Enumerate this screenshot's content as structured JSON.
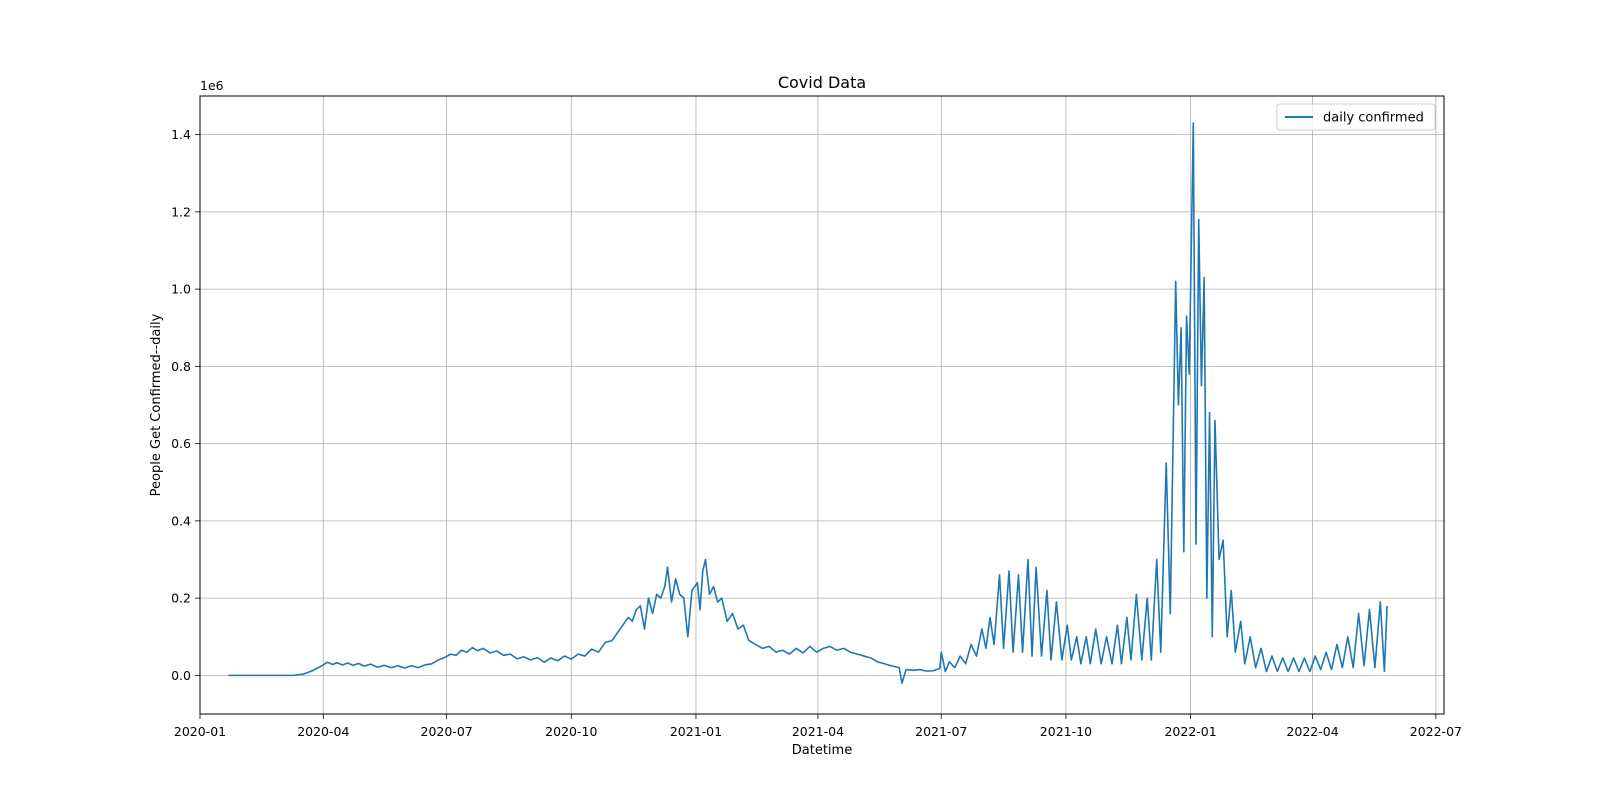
{
  "chart_data": {
    "type": "line",
    "title": "Covid Data",
    "xlabel": "Datetime",
    "ylabel": "People Get Confirmed--daily",
    "y_offset_text": "1e6",
    "y_multiplier": 1000000,
    "xlim": [
      "2020-01-01",
      "2022-07-07"
    ],
    "ylim": [
      -0.1,
      1.5
    ],
    "grid": true,
    "legend_position": "top-right",
    "x_ticks": [
      {
        "date": "2020-01-01",
        "label": "2020-01"
      },
      {
        "date": "2020-04-01",
        "label": "2020-04"
      },
      {
        "date": "2020-07-01",
        "label": "2020-07"
      },
      {
        "date": "2020-10-01",
        "label": "2020-10"
      },
      {
        "date": "2021-01-01",
        "label": "2021-01"
      },
      {
        "date": "2021-04-01",
        "label": "2021-04"
      },
      {
        "date": "2021-07-01",
        "label": "2021-07"
      },
      {
        "date": "2021-10-01",
        "label": "2021-10"
      },
      {
        "date": "2022-01-01",
        "label": "2022-01"
      },
      {
        "date": "2022-04-01",
        "label": "2022-04"
      },
      {
        "date": "2022-07-01",
        "label": "2022-07"
      }
    ],
    "y_ticks": [
      {
        "value": 0.0,
        "label": "0.0"
      },
      {
        "value": 0.2,
        "label": "0.2"
      },
      {
        "value": 0.4,
        "label": "0.4"
      },
      {
        "value": 0.6,
        "label": "0.6"
      },
      {
        "value": 0.8,
        "label": "0.8"
      },
      {
        "value": 1.0,
        "label": "1.0"
      },
      {
        "value": 1.2,
        "label": "1.2"
      },
      {
        "value": 1.4,
        "label": "1.4"
      }
    ],
    "series": [
      {
        "name": "daily confirmed",
        "color": "#1f77b4",
        "points": [
          [
            "2020-01-22",
            0
          ],
          [
            "2020-02-15",
            0
          ],
          [
            "2020-03-10",
            0
          ],
          [
            "2020-03-17",
            0.003
          ],
          [
            "2020-03-24",
            0.012
          ],
          [
            "2020-03-31",
            0.025
          ],
          [
            "2020-04-04",
            0.034
          ],
          [
            "2020-04-08",
            0.028
          ],
          [
            "2020-04-11",
            0.033
          ],
          [
            "2020-04-15",
            0.027
          ],
          [
            "2020-04-19",
            0.032
          ],
          [
            "2020-04-23",
            0.026
          ],
          [
            "2020-04-27",
            0.031
          ],
          [
            "2020-05-01",
            0.024
          ],
          [
            "2020-05-06",
            0.029
          ],
          [
            "2020-05-11",
            0.021
          ],
          [
            "2020-05-16",
            0.026
          ],
          [
            "2020-05-21",
            0.02
          ],
          [
            "2020-05-26",
            0.025
          ],
          [
            "2020-05-31",
            0.019
          ],
          [
            "2020-06-05",
            0.025
          ],
          [
            "2020-06-10",
            0.02
          ],
          [
            "2020-06-15",
            0.027
          ],
          [
            "2020-06-20",
            0.03
          ],
          [
            "2020-06-25",
            0.04
          ],
          [
            "2020-06-30",
            0.047
          ],
          [
            "2020-07-04",
            0.055
          ],
          [
            "2020-07-08",
            0.052
          ],
          [
            "2020-07-12",
            0.065
          ],
          [
            "2020-07-16",
            0.06
          ],
          [
            "2020-07-20",
            0.072
          ],
          [
            "2020-07-24",
            0.064
          ],
          [
            "2020-07-28",
            0.07
          ],
          [
            "2020-08-02",
            0.058
          ],
          [
            "2020-08-07",
            0.063
          ],
          [
            "2020-08-12",
            0.052
          ],
          [
            "2020-08-17",
            0.055
          ],
          [
            "2020-08-22",
            0.043
          ],
          [
            "2020-08-27",
            0.048
          ],
          [
            "2020-09-01",
            0.04
          ],
          [
            "2020-09-06",
            0.046
          ],
          [
            "2020-09-11",
            0.034
          ],
          [
            "2020-09-16",
            0.045
          ],
          [
            "2020-09-21",
            0.038
          ],
          [
            "2020-09-26",
            0.05
          ],
          [
            "2020-10-01",
            0.042
          ],
          [
            "2020-10-06",
            0.055
          ],
          [
            "2020-10-11",
            0.05
          ],
          [
            "2020-10-16",
            0.068
          ],
          [
            "2020-10-21",
            0.06
          ],
          [
            "2020-10-26",
            0.085
          ],
          [
            "2020-10-31",
            0.09
          ],
          [
            "2020-11-04",
            0.11
          ],
          [
            "2020-11-08",
            0.13
          ],
          [
            "2020-11-12",
            0.15
          ],
          [
            "2020-11-15",
            0.14
          ],
          [
            "2020-11-18",
            0.17
          ],
          [
            "2020-11-21",
            0.18
          ],
          [
            "2020-11-24",
            0.12
          ],
          [
            "2020-11-27",
            0.2
          ],
          [
            "2020-11-30",
            0.16
          ],
          [
            "2020-12-03",
            0.21
          ],
          [
            "2020-12-06",
            0.2
          ],
          [
            "2020-12-09",
            0.23
          ],
          [
            "2020-12-11",
            0.28
          ],
          [
            "2020-12-14",
            0.19
          ],
          [
            "2020-12-17",
            0.25
          ],
          [
            "2020-12-20",
            0.21
          ],
          [
            "2020-12-23",
            0.2
          ],
          [
            "2020-12-26",
            0.1
          ],
          [
            "2020-12-29",
            0.22
          ],
          [
            "2021-01-02",
            0.24
          ],
          [
            "2021-01-04",
            0.17
          ],
          [
            "2021-01-06",
            0.27
          ],
          [
            "2021-01-08",
            0.3
          ],
          [
            "2021-01-11",
            0.21
          ],
          [
            "2021-01-14",
            0.23
          ],
          [
            "2021-01-17",
            0.19
          ],
          [
            "2021-01-20",
            0.2
          ],
          [
            "2021-01-24",
            0.14
          ],
          [
            "2021-01-28",
            0.16
          ],
          [
            "2021-02-01",
            0.12
          ],
          [
            "2021-02-05",
            0.13
          ],
          [
            "2021-02-09",
            0.09
          ],
          [
            "2021-02-14",
            0.08
          ],
          [
            "2021-02-19",
            0.07
          ],
          [
            "2021-02-24",
            0.075
          ],
          [
            "2021-03-01",
            0.06
          ],
          [
            "2021-03-06",
            0.065
          ],
          [
            "2021-03-11",
            0.055
          ],
          [
            "2021-03-16",
            0.07
          ],
          [
            "2021-03-21",
            0.058
          ],
          [
            "2021-03-26",
            0.075
          ],
          [
            "2021-03-31",
            0.06
          ],
          [
            "2021-04-05",
            0.07
          ],
          [
            "2021-04-10",
            0.075
          ],
          [
            "2021-04-15",
            0.065
          ],
          [
            "2021-04-20",
            0.07
          ],
          [
            "2021-04-25",
            0.06
          ],
          [
            "2021-04-30",
            0.055
          ],
          [
            "2021-05-05",
            0.05
          ],
          [
            "2021-05-10",
            0.045
          ],
          [
            "2021-05-15",
            0.035
          ],
          [
            "2021-05-20",
            0.03
          ],
          [
            "2021-05-25",
            0.025
          ],
          [
            "2021-05-31",
            0.02
          ],
          [
            "2021-06-02",
            -0.02
          ],
          [
            "2021-06-05",
            0.015
          ],
          [
            "2021-06-10",
            0.013
          ],
          [
            "2021-06-15",
            0.015
          ],
          [
            "2021-06-20",
            0.011
          ],
          [
            "2021-06-25",
            0.012
          ],
          [
            "2021-06-30",
            0.018
          ],
          [
            "2021-07-01",
            0.06
          ],
          [
            "2021-07-04",
            0.01
          ],
          [
            "2021-07-07",
            0.035
          ],
          [
            "2021-07-11",
            0.02
          ],
          [
            "2021-07-15",
            0.05
          ],
          [
            "2021-07-19",
            0.03
          ],
          [
            "2021-07-23",
            0.08
          ],
          [
            "2021-07-27",
            0.05
          ],
          [
            "2021-07-31",
            0.12
          ],
          [
            "2021-08-03",
            0.07
          ],
          [
            "2021-08-06",
            0.15
          ],
          [
            "2021-08-09",
            0.08
          ],
          [
            "2021-08-13",
            0.26
          ],
          [
            "2021-08-16",
            0.07
          ],
          [
            "2021-08-20",
            0.27
          ],
          [
            "2021-08-23",
            0.06
          ],
          [
            "2021-08-27",
            0.26
          ],
          [
            "2021-08-30",
            0.06
          ],
          [
            "2021-09-03",
            0.3
          ],
          [
            "2021-09-06",
            0.05
          ],
          [
            "2021-09-09",
            0.28
          ],
          [
            "2021-09-13",
            0.05
          ],
          [
            "2021-09-17",
            0.22
          ],
          [
            "2021-09-20",
            0.04
          ],
          [
            "2021-09-24",
            0.19
          ],
          [
            "2021-09-28",
            0.04
          ],
          [
            "2021-10-02",
            0.13
          ],
          [
            "2021-10-05",
            0.04
          ],
          [
            "2021-10-09",
            0.1
          ],
          [
            "2021-10-12",
            0.03
          ],
          [
            "2021-10-16",
            0.1
          ],
          [
            "2021-10-19",
            0.03
          ],
          [
            "2021-10-23",
            0.12
          ],
          [
            "2021-10-27",
            0.03
          ],
          [
            "2021-10-31",
            0.1
          ],
          [
            "2021-11-04",
            0.03
          ],
          [
            "2021-11-08",
            0.13
          ],
          [
            "2021-11-11",
            0.03
          ],
          [
            "2021-11-15",
            0.15
          ],
          [
            "2021-11-18",
            0.04
          ],
          [
            "2021-11-22",
            0.21
          ],
          [
            "2021-11-26",
            0.04
          ],
          [
            "2021-11-30",
            0.2
          ],
          [
            "2021-12-03",
            0.04
          ],
          [
            "2021-12-07",
            0.3
          ],
          [
            "2021-12-10",
            0.06
          ],
          [
            "2021-12-14",
            0.55
          ],
          [
            "2021-12-17",
            0.16
          ],
          [
            "2021-12-21",
            1.02
          ],
          [
            "2021-12-23",
            0.7
          ],
          [
            "2021-12-25",
            0.9
          ],
          [
            "2021-12-27",
            0.32
          ],
          [
            "2021-12-29",
            0.93
          ],
          [
            "2021-12-31",
            0.78
          ],
          [
            "2022-01-03",
            1.43
          ],
          [
            "2022-01-05",
            0.34
          ],
          [
            "2022-01-07",
            1.18
          ],
          [
            "2022-01-09",
            0.75
          ],
          [
            "2022-01-11",
            1.03
          ],
          [
            "2022-01-13",
            0.2
          ],
          [
            "2022-01-15",
            0.68
          ],
          [
            "2022-01-17",
            0.1
          ],
          [
            "2022-01-19",
            0.66
          ],
          [
            "2022-01-22",
            0.3
          ],
          [
            "2022-01-25",
            0.35
          ],
          [
            "2022-01-28",
            0.1
          ],
          [
            "2022-01-31",
            0.22
          ],
          [
            "2022-02-03",
            0.06
          ],
          [
            "2022-02-07",
            0.14
          ],
          [
            "2022-02-10",
            0.03
          ],
          [
            "2022-02-14",
            0.1
          ],
          [
            "2022-02-18",
            0.02
          ],
          [
            "2022-02-22",
            0.07
          ],
          [
            "2022-02-26",
            0.01
          ],
          [
            "2022-03-02",
            0.05
          ],
          [
            "2022-03-06",
            0.01
          ],
          [
            "2022-03-10",
            0.045
          ],
          [
            "2022-03-14",
            0.01
          ],
          [
            "2022-03-18",
            0.045
          ],
          [
            "2022-03-22",
            0.01
          ],
          [
            "2022-03-26",
            0.045
          ],
          [
            "2022-03-30",
            0.01
          ],
          [
            "2022-04-03",
            0.05
          ],
          [
            "2022-04-07",
            0.015
          ],
          [
            "2022-04-11",
            0.06
          ],
          [
            "2022-04-15",
            0.015
          ],
          [
            "2022-04-19",
            0.08
          ],
          [
            "2022-04-23",
            0.02
          ],
          [
            "2022-04-27",
            0.1
          ],
          [
            "2022-05-01",
            0.02
          ],
          [
            "2022-05-05",
            0.16
          ],
          [
            "2022-05-09",
            0.025
          ],
          [
            "2022-05-13",
            0.17
          ],
          [
            "2022-05-17",
            0.02
          ],
          [
            "2022-05-21",
            0.19
          ],
          [
            "2022-05-24",
            0.01
          ],
          [
            "2022-05-26",
            0.18
          ]
        ]
      }
    ]
  }
}
